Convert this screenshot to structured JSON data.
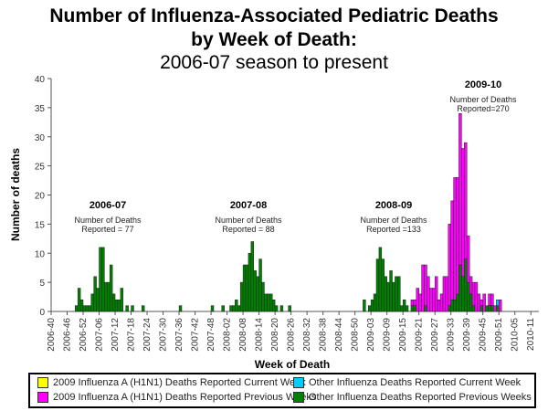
{
  "chart_data": {
    "type": "bar",
    "stacked": true,
    "title": "Number of Influenza-Associated Pediatric Deaths",
    "title_line2": "by Week of Death:",
    "subtitle": "2006-07 season to present",
    "xlabel": "Week of Death",
    "ylabel": "Number of deaths",
    "ylim": [
      0,
      40
    ],
    "yticks": [
      0,
      5,
      10,
      15,
      20,
      25,
      30,
      35,
      40
    ],
    "x_start_week": "2006-40",
    "x_tick_labels": [
      "2006-40",
      "2006-46",
      "2006-52",
      "2007-06",
      "2007-12",
      "2007-18",
      "2007-24",
      "2007-30",
      "2007-36",
      "2007-42",
      "2007-48",
      "2008-02",
      "2008-08",
      "2008-14",
      "2008-20",
      "2008-26",
      "2008-32",
      "2008-38",
      "2008-44",
      "2008-50",
      "2009-03",
      "2009-09",
      "2009-15",
      "2009-21",
      "2009-27",
      "2009-33",
      "2009-39",
      "2009-45",
      "2009-51",
      "2010-05",
      "2010-11"
    ],
    "weeks_per_tick": 6,
    "total_weeks": 183,
    "series": [
      {
        "name": "2009 Influenza A (H1N1) Deaths Reported Current Week",
        "color": "#ffff00"
      },
      {
        "name": "2009 Influenza A (H1N1) Deaths Reported Previous Weeks",
        "color": "#ff00ff"
      },
      {
        "name": "Other Influenza Deaths Reported Current Week",
        "color": "#00ccff"
      },
      {
        "name": "Other Influenza Deaths Reported Previous Weeks",
        "color": "#008000"
      }
    ],
    "bars": [
      {
        "week_index": 9,
        "other_prev": 1
      },
      {
        "week_index": 10,
        "other_prev": 4
      },
      {
        "week_index": 11,
        "other_prev": 2
      },
      {
        "week_index": 12,
        "other_prev": 1
      },
      {
        "week_index": 13,
        "other_prev": 1
      },
      {
        "week_index": 14,
        "other_prev": 1
      },
      {
        "week_index": 15,
        "other_prev": 3
      },
      {
        "week_index": 16,
        "other_prev": 6
      },
      {
        "week_index": 17,
        "other_prev": 4
      },
      {
        "week_index": 18,
        "other_prev": 11
      },
      {
        "week_index": 19,
        "other_prev": 11
      },
      {
        "week_index": 20,
        "other_prev": 5
      },
      {
        "week_index": 21,
        "other_prev": 5
      },
      {
        "week_index": 22,
        "other_prev": 8
      },
      {
        "week_index": 23,
        "other_prev": 3
      },
      {
        "week_index": 24,
        "other_prev": 2
      },
      {
        "week_index": 25,
        "other_prev": 2
      },
      {
        "week_index": 26,
        "other_prev": 4
      },
      {
        "week_index": 28,
        "other_prev": 1
      },
      {
        "week_index": 30,
        "other_prev": 1
      },
      {
        "week_index": 34,
        "other_prev": 1
      },
      {
        "week_index": 48,
        "other_prev": 1
      },
      {
        "week_index": 60,
        "other_prev": 1
      },
      {
        "week_index": 64,
        "other_prev": 1
      },
      {
        "week_index": 67,
        "other_prev": 1
      },
      {
        "week_index": 68,
        "other_prev": 1
      },
      {
        "week_index": 69,
        "other_prev": 2
      },
      {
        "week_index": 70,
        "other_prev": 1
      },
      {
        "week_index": 71,
        "other_prev": 5
      },
      {
        "week_index": 72,
        "other_prev": 8
      },
      {
        "week_index": 73,
        "other_prev": 8
      },
      {
        "week_index": 74,
        "other_prev": 10
      },
      {
        "week_index": 75,
        "other_prev": 12
      },
      {
        "week_index": 76,
        "other_prev": 7
      },
      {
        "week_index": 77,
        "other_prev": 6
      },
      {
        "week_index": 78,
        "other_prev": 9
      },
      {
        "week_index": 79,
        "other_prev": 5
      },
      {
        "week_index": 80,
        "other_prev": 3
      },
      {
        "week_index": 81,
        "other_prev": 3
      },
      {
        "week_index": 82,
        "other_prev": 3
      },
      {
        "week_index": 83,
        "other_prev": 2
      },
      {
        "week_index": 84,
        "other_prev": 1
      },
      {
        "week_index": 86,
        "other_prev": 1
      },
      {
        "week_index": 89,
        "other_prev": 1
      },
      {
        "week_index": 117,
        "other_prev": 2
      },
      {
        "week_index": 119,
        "other_prev": 1
      },
      {
        "week_index": 120,
        "other_prev": 2
      },
      {
        "week_index": 121,
        "other_prev": 3
      },
      {
        "week_index": 122,
        "other_prev": 9
      },
      {
        "week_index": 123,
        "other_prev": 11
      },
      {
        "week_index": 124,
        "other_prev": 9
      },
      {
        "week_index": 125,
        "other_prev": 6
      },
      {
        "week_index": 126,
        "other_prev": 5
      },
      {
        "week_index": 127,
        "other_prev": 7
      },
      {
        "week_index": 128,
        "other_prev": 5
      },
      {
        "week_index": 129,
        "other_prev": 6
      },
      {
        "week_index": 130,
        "other_prev": 6
      },
      {
        "week_index": 131,
        "other_prev": 1
      },
      {
        "week_index": 132,
        "other_prev": 2
      },
      {
        "week_index": 133,
        "other_prev": 1
      },
      {
        "week_index": 135,
        "other_prev": 1,
        "h1n1_prev": 1
      },
      {
        "week_index": 136,
        "other_prev": 1,
        "h1n1_prev": 1
      },
      {
        "week_index": 137,
        "other_prev": 0,
        "h1n1_prev": 4
      },
      {
        "week_index": 138,
        "other_prev": 0,
        "h1n1_prev": 3
      },
      {
        "week_index": 139,
        "other_prev": 0,
        "h1n1_prev": 8
      },
      {
        "week_index": 140,
        "other_prev": 1,
        "h1n1_prev": 7
      },
      {
        "week_index": 141,
        "other_prev": 0,
        "h1n1_prev": 6
      },
      {
        "week_index": 142,
        "other_prev": 0,
        "h1n1_prev": 4
      },
      {
        "week_index": 143,
        "other_prev": 0,
        "h1n1_prev": 4
      },
      {
        "week_index": 144,
        "other_prev": 0,
        "h1n1_prev": 6
      },
      {
        "week_index": 145,
        "other_prev": 0,
        "h1n1_prev": 2
      },
      {
        "week_index": 146,
        "other_prev": 0,
        "h1n1_prev": 3
      },
      {
        "week_index": 147,
        "other_prev": 0,
        "h1n1_prev": 6
      },
      {
        "week_index": 148,
        "other_prev": 0,
        "h1n1_prev": 6
      },
      {
        "week_index": 149,
        "other_prev": 1,
        "h1n1_prev": 14
      },
      {
        "week_index": 150,
        "other_prev": 2,
        "h1n1_prev": 17
      },
      {
        "week_index": 151,
        "other_prev": 2,
        "h1n1_prev": 21
      },
      {
        "week_index": 152,
        "other_prev": 3,
        "h1n1_prev": 20
      },
      {
        "week_index": 153,
        "other_prev": 8,
        "h1n1_prev": 26
      },
      {
        "week_index": 154,
        "other_prev": 6,
        "h1n1_prev": 22
      },
      {
        "week_index": 155,
        "other_prev": 9,
        "h1n1_prev": 20
      },
      {
        "week_index": 156,
        "other_prev": 5,
        "h1n1_prev": 8
      },
      {
        "week_index": 157,
        "other_prev": 3,
        "h1n1_prev": 3
      },
      {
        "week_index": 158,
        "other_prev": 1,
        "h1n1_prev": 4
      },
      {
        "week_index": 159,
        "other_prev": 0,
        "h1n1_prev": 5
      },
      {
        "week_index": 160,
        "other_prev": 0,
        "h1n1_prev": 3
      },
      {
        "week_index": 161,
        "other_prev": 1,
        "h1n1_prev": 1
      },
      {
        "week_index": 162,
        "other_prev": 0,
        "h1n1_prev": 3
      },
      {
        "week_index": 163,
        "other_prev": 1,
        "h1n1_prev": 0
      },
      {
        "week_index": 164,
        "other_prev": 1,
        "h1n1_prev": 2
      },
      {
        "week_index": 165,
        "other_prev": 1,
        "h1n1_prev": 2
      },
      {
        "week_index": 166,
        "other_prev": 0,
        "h1n1_prev": 1
      },
      {
        "week_index": 167,
        "other_prev": 1,
        "h1n1_prev": 0,
        "other_curr": 1
      },
      {
        "week_index": 168,
        "other_prev": 0,
        "h1n1_prev": 2
      }
    ],
    "annotations": [
      {
        "season": "2006-07",
        "line1": "Number of Deaths",
        "line2": "Reported = 77"
      },
      {
        "season": "2007-08",
        "line1": "Number of Deaths",
        "line2": "Reported = 88"
      },
      {
        "season": "2008-09",
        "line1": "Number of Deaths",
        "line2": "Reported =133"
      },
      {
        "season": "2009-10",
        "line1": "Number of Deaths",
        "line2": "Reported=270"
      }
    ],
    "legend_position": "bottom"
  },
  "header": {
    "line1": "Number of Influenza-Associated Pediatric Deaths",
    "line2": "by Week of Death:",
    "line3": "2006-07 season to present"
  },
  "legend": {
    "items": [
      {
        "label": "2009 Influenza  A (H1N1)  Deaths Reported Current Week",
        "color": "#ffff00"
      },
      {
        "label": "Other Influenza  Deaths Reported Current Week",
        "color": "#00ccff"
      },
      {
        "label": "2009 Influenza  A (H1N1)  Deaths Reported Previous Weeks",
        "color": "#ff00ff"
      },
      {
        "label": "Other Influenza  Deaths Reported Previous Weeks",
        "color": "#008000"
      }
    ]
  }
}
